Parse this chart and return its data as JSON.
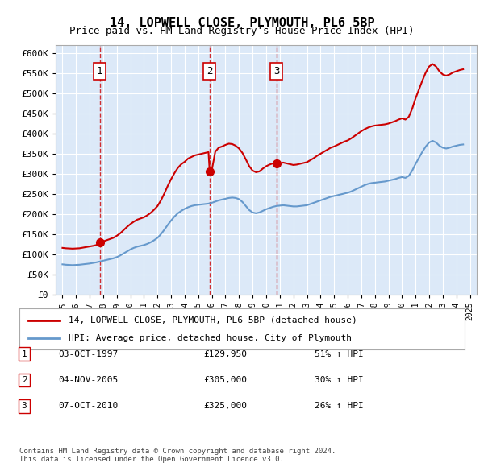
{
  "title": "14, LOPWELL CLOSE, PLYMOUTH, PL6 5BP",
  "subtitle": "Price paid vs. HM Land Registry's House Price Index (HPI)",
  "bg_color": "#dce9f8",
  "plot_bg_color": "#dce9f8",
  "outer_bg_color": "#ffffff",
  "ylabel_ticks": [
    "£0",
    "£50K",
    "£100K",
    "£150K",
    "£200K",
    "£250K",
    "£300K",
    "£350K",
    "£400K",
    "£450K",
    "£500K",
    "£550K",
    "£600K"
  ],
  "ytick_values": [
    0,
    50000,
    100000,
    150000,
    200000,
    250000,
    300000,
    350000,
    400000,
    450000,
    500000,
    550000,
    600000
  ],
  "xticklabels": [
    "1995",
    "1996",
    "1997",
    "1998",
    "1999",
    "2000",
    "2001",
    "2002",
    "2003",
    "2004",
    "2005",
    "2006",
    "2007",
    "2008",
    "2009",
    "2010",
    "2011",
    "2012",
    "2013",
    "2014",
    "2015",
    "2016",
    "2017",
    "2018",
    "2019",
    "2020",
    "2021",
    "2022",
    "2023",
    "2024",
    "2025"
  ],
  "red_line_color": "#cc0000",
  "blue_line_color": "#6699cc",
  "marker_color": "#cc0000",
  "sale_1": {
    "date_num": 1997.75,
    "price": 129950,
    "label": "1"
  },
  "sale_2": {
    "date_num": 2005.84,
    "price": 305000,
    "label": "2"
  },
  "sale_3": {
    "date_num": 2010.77,
    "price": 325000,
    "label": "3"
  },
  "vline_color": "#cc0000",
  "grid_color": "#ffffff",
  "legend_red_label": "14, LOPWELL CLOSE, PLYMOUTH, PL6 5BP (detached house)",
  "legend_blue_label": "HPI: Average price, detached house, City of Plymouth",
  "table_rows": [
    {
      "num": "1",
      "date": "03-OCT-1997",
      "price": "£129,950",
      "hpi": "51% ↑ HPI"
    },
    {
      "num": "2",
      "date": "04-NOV-2005",
      "price": "£305,000",
      "hpi": "30% ↑ HPI"
    },
    {
      "num": "3",
      "date": "07-OCT-2010",
      "price": "£325,000",
      "hpi": "26% ↑ HPI"
    }
  ],
  "footer": "Contains HM Land Registry data © Crown copyright and database right 2024.\nThis data is licensed under the Open Government Licence v3.0.",
  "hpi_data": {
    "years": [
      1995.0,
      1995.25,
      1995.5,
      1995.75,
      1996.0,
      1996.25,
      1996.5,
      1996.75,
      1997.0,
      1997.25,
      1997.5,
      1997.75,
      1998.0,
      1998.25,
      1998.5,
      1998.75,
      1999.0,
      1999.25,
      1999.5,
      1999.75,
      2000.0,
      2000.25,
      2000.5,
      2000.75,
      2001.0,
      2001.25,
      2001.5,
      2001.75,
      2002.0,
      2002.25,
      2002.5,
      2002.75,
      2003.0,
      2003.25,
      2003.5,
      2003.75,
      2004.0,
      2004.25,
      2004.5,
      2004.75,
      2005.0,
      2005.25,
      2005.5,
      2005.75,
      2006.0,
      2006.25,
      2006.5,
      2006.75,
      2007.0,
      2007.25,
      2007.5,
      2007.75,
      2008.0,
      2008.25,
      2008.5,
      2008.75,
      2009.0,
      2009.25,
      2009.5,
      2009.75,
      2010.0,
      2010.25,
      2010.5,
      2010.75,
      2011.0,
      2011.25,
      2011.5,
      2011.75,
      2012.0,
      2012.25,
      2012.5,
      2012.75,
      2013.0,
      2013.25,
      2013.5,
      2013.75,
      2014.0,
      2014.25,
      2014.5,
      2014.75,
      2015.0,
      2015.25,
      2015.5,
      2015.75,
      2016.0,
      2016.25,
      2016.5,
      2016.75,
      2017.0,
      2017.25,
      2017.5,
      2017.75,
      2018.0,
      2018.25,
      2018.5,
      2018.75,
      2019.0,
      2019.25,
      2019.5,
      2019.75,
      2020.0,
      2020.25,
      2020.5,
      2020.75,
      2021.0,
      2021.25,
      2021.5,
      2021.75,
      2022.0,
      2022.25,
      2022.5,
      2022.75,
      2023.0,
      2023.25,
      2023.5,
      2023.75,
      2024.0,
      2024.25,
      2024.5
    ],
    "values": [
      75000,
      74000,
      73500,
      73000,
      73500,
      74000,
      75000,
      76000,
      77000,
      78500,
      80000,
      82000,
      84000,
      86000,
      88000,
      90000,
      93000,
      97000,
      102000,
      107000,
      112000,
      116000,
      119000,
      121000,
      123000,
      126000,
      130000,
      135000,
      141000,
      150000,
      161000,
      173000,
      184000,
      194000,
      202000,
      208000,
      213000,
      217000,
      220000,
      222000,
      223000,
      224000,
      225000,
      226000,
      228000,
      231000,
      234000,
      236000,
      238000,
      240000,
      241000,
      240000,
      237000,
      230000,
      220000,
      210000,
      204000,
      202000,
      204000,
      208000,
      212000,
      215000,
      218000,
      220000,
      221000,
      222000,
      221000,
      220000,
      219000,
      219000,
      220000,
      221000,
      222000,
      225000,
      228000,
      231000,
      234000,
      237000,
      240000,
      243000,
      245000,
      247000,
      249000,
      251000,
      253000,
      256000,
      260000,
      264000,
      268000,
      272000,
      275000,
      277000,
      278000,
      279000,
      280000,
      281000,
      283000,
      285000,
      287000,
      290000,
      292000,
      290000,
      295000,
      308000,
      325000,
      340000,
      355000,
      368000,
      378000,
      382000,
      378000,
      370000,
      365000,
      363000,
      365000,
      368000,
      370000,
      372000,
      373000
    ]
  },
  "red_line_data": {
    "years": [
      1995.0,
      1995.25,
      1995.5,
      1995.75,
      1996.0,
      1996.25,
      1996.5,
      1996.75,
      1997.0,
      1997.25,
      1997.5,
      1997.75,
      1998.0,
      1998.25,
      1998.5,
      1998.75,
      1999.0,
      1999.25,
      1999.5,
      1999.75,
      2000.0,
      2000.25,
      2000.5,
      2000.75,
      2001.0,
      2001.25,
      2001.5,
      2001.75,
      2002.0,
      2002.25,
      2002.5,
      2002.75,
      2003.0,
      2003.25,
      2003.5,
      2003.75,
      2004.0,
      2004.25,
      2004.5,
      2004.75,
      2005.0,
      2005.25,
      2005.5,
      2005.75,
      2005.84,
      2006.0,
      2006.25,
      2006.5,
      2006.75,
      2007.0,
      2007.25,
      2007.5,
      2007.75,
      2008.0,
      2008.25,
      2008.5,
      2008.75,
      2009.0,
      2009.25,
      2009.5,
      2009.75,
      2010.0,
      2010.25,
      2010.5,
      2010.77,
      2011.0,
      2011.25,
      2011.5,
      2011.75,
      2012.0,
      2012.25,
      2012.5,
      2012.75,
      2013.0,
      2013.25,
      2013.5,
      2013.75,
      2014.0,
      2014.25,
      2014.5,
      2014.75,
      2015.0,
      2015.25,
      2015.5,
      2015.75,
      2016.0,
      2016.25,
      2016.5,
      2016.75,
      2017.0,
      2017.25,
      2017.5,
      2017.75,
      2018.0,
      2018.25,
      2018.5,
      2018.75,
      2019.0,
      2019.25,
      2019.5,
      2019.75,
      2020.0,
      2020.25,
      2020.5,
      2020.75,
      2021.0,
      2021.25,
      2021.5,
      2021.75,
      2022.0,
      2022.25,
      2022.5,
      2022.75,
      2023.0,
      2023.25,
      2023.5,
      2023.75,
      2024.0,
      2024.25,
      2024.5
    ],
    "values": [
      116000,
      115000,
      114500,
      114000,
      114500,
      115000,
      116500,
      118000,
      119500,
      121000,
      123000,
      129950,
      132000,
      135000,
      138000,
      141000,
      146000,
      152000,
      160000,
      168000,
      175000,
      181000,
      186000,
      189000,
      192000,
      197000,
      203000,
      211000,
      220000,
      234000,
      251000,
      270000,
      287000,
      302000,
      315000,
      324000,
      330000,
      338000,
      342000,
      346000,
      348000,
      350000,
      352000,
      354000,
      305000,
      310000,
      355000,
      365000,
      368000,
      372000,
      375000,
      374000,
      370000,
      363000,
      352000,
      336000,
      319000,
      308000,
      304000,
      306000,
      313000,
      319000,
      323000,
      326000,
      325000,
      326000,
      328000,
      326000,
      324000,
      322000,
      323000,
      325000,
      327000,
      329000,
      334000,
      339000,
      345000,
      350000,
      355000,
      360000,
      365000,
      368000,
      372000,
      376000,
      380000,
      383000,
      388000,
      394000,
      400000,
      406000,
      411000,
      415000,
      418000,
      420000,
      421000,
      422000,
      423000,
      425000,
      428000,
      431000,
      435000,
      438000,
      435000,
      442000,
      462000,
      488000,
      510000,
      532000,
      552000,
      567000,
      573000,
      567000,
      555000,
      547000,
      544000,
      547000,
      552000,
      555000,
      558000,
      560000
    ]
  }
}
